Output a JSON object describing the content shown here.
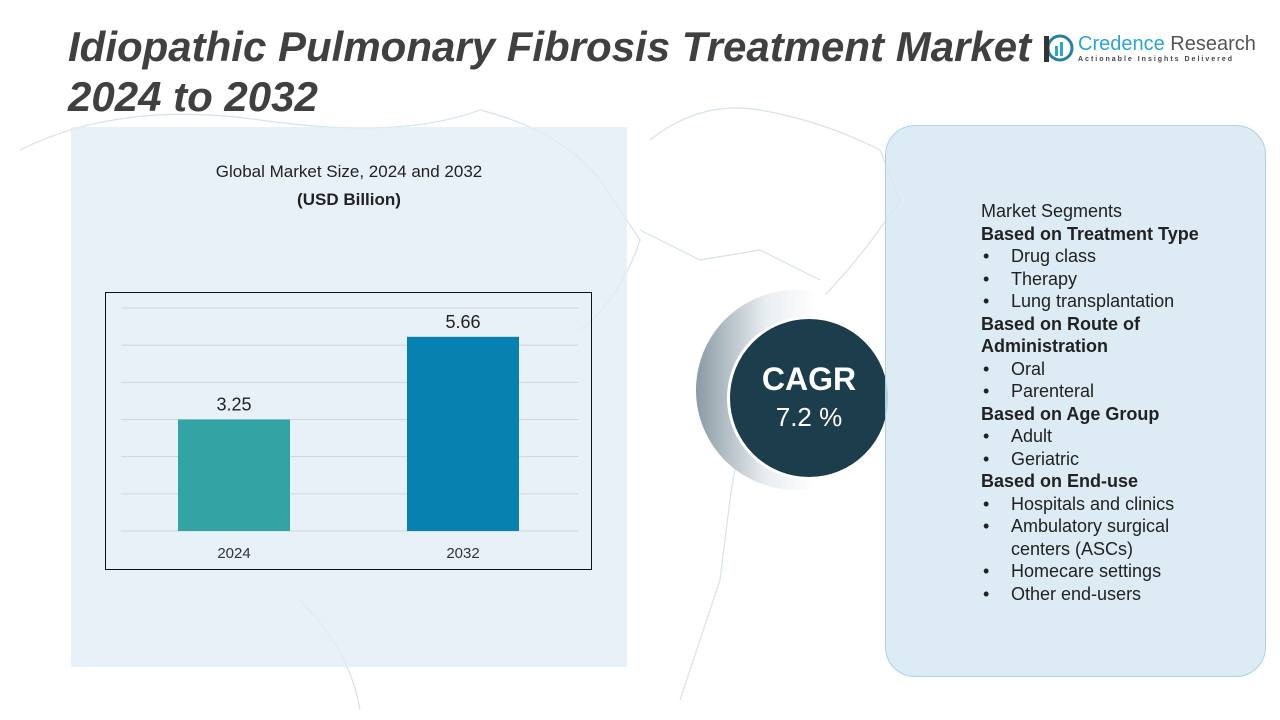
{
  "title": "Idiopathic Pulmonary Fibrosis Treatment Market 2024 to 2032",
  "title_line1": "Idiopathic Pulmonary Fibrosis Treatment Market",
  "title_line2": "2024 to 2032",
  "logo": {
    "name": "Credence",
    "name2": " Research",
    "tagline": "Actionable Insights Delivered"
  },
  "chart_data": {
    "type": "bar",
    "title": "Global Market Size, 2024 and 2032",
    "subtitle": "(USD Billion)",
    "categories": [
      "2024",
      "2032"
    ],
    "values": [
      3.25,
      5.66
    ],
    "value_labels": [
      "3.25",
      "5.66"
    ],
    "colors": [
      "#33a3a3",
      "#0681b0"
    ],
    "ylim": [
      0,
      6.5
    ],
    "grid": true
  },
  "cagr": {
    "label": "CAGR",
    "value": "7.2 %"
  },
  "segments": {
    "heading": "Market Segments",
    "groups": [
      {
        "title": "Based on Treatment Type",
        "items": [
          "Drug class",
          "Therapy",
          "Lung transplantation"
        ]
      },
      {
        "title": "Based on Route of Administration",
        "items": [
          "Oral",
          "Parenteral"
        ]
      },
      {
        "title": "Based on Age Group",
        "items": [
          "Adult",
          "Geriatric"
        ]
      },
      {
        "title": "Based on End-use",
        "items": [
          "Hospitals and clinics",
          "Ambulatory surgical centers (ASCs)",
          "Homecare settings",
          "Other end-users"
        ]
      }
    ]
  }
}
